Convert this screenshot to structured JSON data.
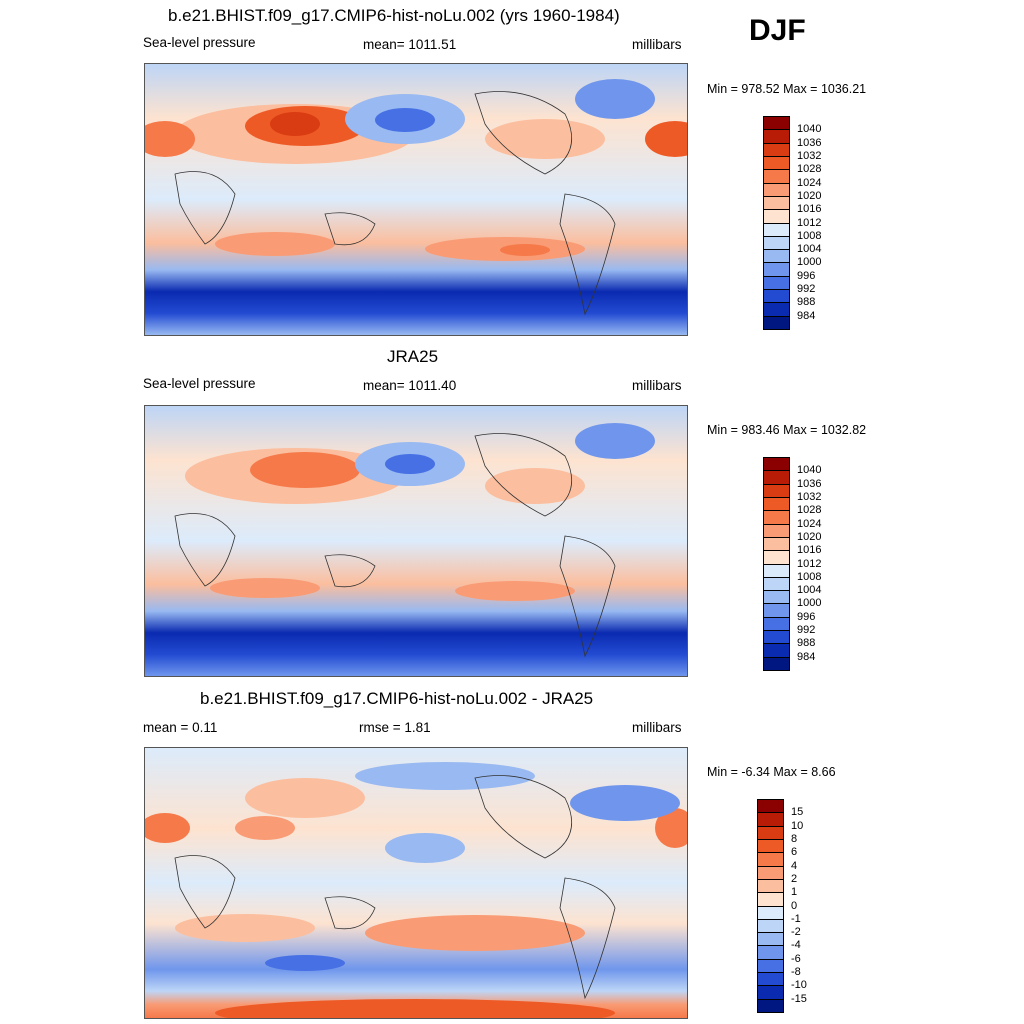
{
  "header": {
    "season": "DJF"
  },
  "panels": [
    {
      "id": "model",
      "title": "b.e21.BHIST.f09_g17.CMIP6-hist-noLu.002 (yrs 1960-1984)",
      "left_label": "Sea-level pressure",
      "center_label": "mean= 1011.51",
      "right_label": "millibars",
      "minmax": "Min = 978.52 Max = 1036.21",
      "colorbar_labels": [
        "1040",
        "1036",
        "1032",
        "1028",
        "1024",
        "1020",
        "1016",
        "1012",
        "1008",
        "1004",
        "1000",
        "996",
        "992",
        "988",
        "984"
      ],
      "colors": [
        "#8b0000",
        "#b81c06",
        "#d93b12",
        "#ee5a26",
        "#f6794a",
        "#f99b74",
        "#fbbe9e",
        "#fde3d0",
        "#dcebfb",
        "#bdd5f6",
        "#98b9f1",
        "#6f96ec",
        "#4670e4",
        "#224bd2",
        "#0a2ab0",
        "#001680"
      ]
    },
    {
      "id": "obs",
      "title": "JRA25",
      "left_label": "Sea-level pressure",
      "center_label": "mean= 1011.40",
      "right_label": "millibars",
      "minmax": "Min = 983.46 Max = 1032.82",
      "colorbar_labels": [
        "1040",
        "1036",
        "1032",
        "1028",
        "1024",
        "1020",
        "1016",
        "1012",
        "1008",
        "1004",
        "1000",
        "996",
        "992",
        "988",
        "984"
      ],
      "colors": [
        "#8b0000",
        "#b81c06",
        "#d93b12",
        "#ee5a26",
        "#f6794a",
        "#f99b74",
        "#fbbe9e",
        "#fde3d0",
        "#dcebfb",
        "#bdd5f6",
        "#98b9f1",
        "#6f96ec",
        "#4670e4",
        "#224bd2",
        "#0a2ab0",
        "#001680"
      ]
    },
    {
      "id": "diff",
      "title": "b.e21.BHIST.f09_g17.CMIP6-hist-noLu.002 - JRA25",
      "left_label": "mean =   0.11",
      "center_label": "rmse =   1.81",
      "right_label": "millibars",
      "minmax": "Min =  -6.34 Max =   8.66",
      "colorbar_labels": [
        "15",
        "10",
        "8",
        "6",
        "4",
        "2",
        "1",
        "0",
        "-1",
        "-2",
        "-4",
        "-6",
        "-8",
        "-10",
        "-15"
      ],
      "colors": [
        "#8b0000",
        "#b81c06",
        "#d93b12",
        "#ee5a26",
        "#f6794a",
        "#f99b74",
        "#fbbe9e",
        "#fde3d0",
        "#dcebfb",
        "#bdd5f6",
        "#98b9f1",
        "#6f96ec",
        "#4670e4",
        "#224bd2",
        "#0a2ab0",
        "#001680"
      ]
    }
  ]
}
